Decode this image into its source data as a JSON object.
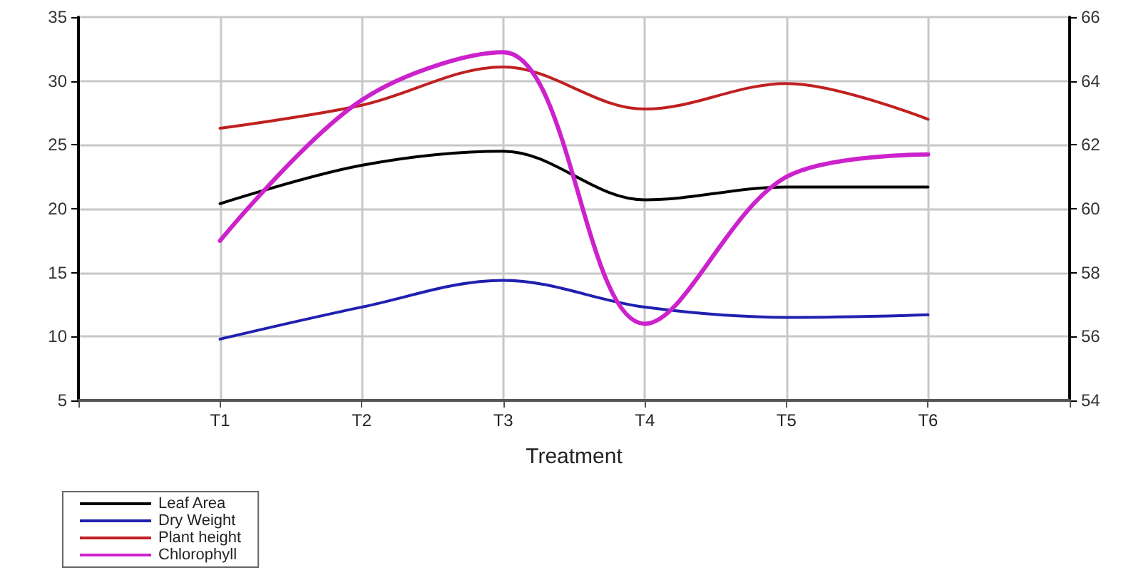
{
  "chart_data": {
    "type": "line",
    "xlabel": "Treatment",
    "categories": [
      null,
      "T1",
      "T2",
      "T3",
      "T4",
      "T5",
      "T6",
      null
    ],
    "series": [
      {
        "name": "Leaf Area",
        "color": "#000000",
        "values": [
          null,
          20.4,
          23.4,
          24.5,
          20.7,
          21.7,
          21.7,
          null
        ]
      },
      {
        "name": "Dry Weight",
        "color": "#2020b0",
        "values": [
          null,
          9.8,
          12.3,
          14.4,
          12.3,
          11.5,
          11.7,
          null
        ]
      },
      {
        "name": "Plant height",
        "color": "#c02020",
        "values": [
          null,
          26.3,
          28.1,
          31.1,
          27.8,
          29.8,
          27.0,
          null
        ]
      },
      {
        "name": "Chlorophyll",
        "color": "#cc22cc",
        "axis": "y2",
        "values": [
          null,
          59.0,
          63.4,
          64.9,
          56.4,
          61.0,
          61.7,
          null
        ]
      }
    ],
    "ylim": [
      5,
      35
    ],
    "yticks": [
      5,
      10,
      15,
      20,
      25,
      30,
      35
    ],
    "y2lim": [
      54,
      66
    ],
    "y2ticks": [
      54,
      56,
      58,
      60,
      62,
      64,
      66
    ],
    "grid": true,
    "legend": "bottom left",
    "marker": "none",
    "line_style": "solid"
  }
}
